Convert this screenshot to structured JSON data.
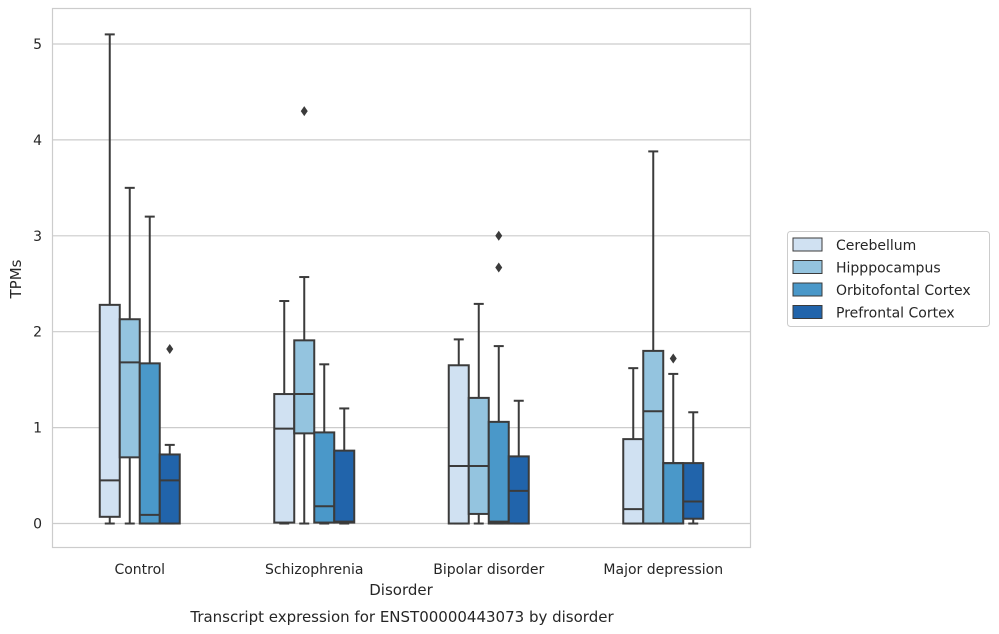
{
  "chart_data": {
    "type": "boxplot",
    "title": "",
    "caption": "Transcript expression for ENST00000443073 by disorder",
    "xlabel": "Disorder",
    "ylabel": "TPMs",
    "ylim": [
      -0.25,
      5.37
    ],
    "yticks": [
      0,
      1,
      2,
      3,
      4,
      5
    ],
    "grid": true,
    "legend_position": "right",
    "categories": [
      "Control",
      "Schizophrenia",
      "Bipolar disorder",
      "Major depression"
    ],
    "series": [
      {
        "name": "Cerebellum",
        "color": "#d0e1f2",
        "boxes": [
          {
            "whislo": 0.0,
            "q1": 0.07,
            "med": 0.45,
            "q3": 2.28,
            "whishi": 5.1,
            "fliers": []
          },
          {
            "whislo": 0.0,
            "q1": 0.01,
            "med": 0.99,
            "q3": 1.35,
            "whishi": 2.32,
            "fliers": []
          },
          {
            "whislo": 0.0,
            "q1": 0.0,
            "med": 0.6,
            "q3": 1.65,
            "whishi": 1.92,
            "fliers": []
          },
          {
            "whislo": 0.0,
            "q1": 0.0,
            "med": 0.15,
            "q3": 0.88,
            "whishi": 1.62,
            "fliers": []
          }
        ]
      },
      {
        "name": "Hipppocampus",
        "color": "#94c4df",
        "boxes": [
          {
            "whislo": 0.0,
            "q1": 0.69,
            "med": 1.68,
            "q3": 2.13,
            "whishi": 3.5,
            "fliers": []
          },
          {
            "whislo": 0.0,
            "q1": 0.94,
            "med": 1.35,
            "q3": 1.91,
            "whishi": 2.57,
            "fliers": [
              4.3
            ]
          },
          {
            "whislo": 0.0,
            "q1": 0.1,
            "med": 0.6,
            "q3": 1.31,
            "whishi": 2.29,
            "fliers": []
          },
          {
            "whislo": 0.0,
            "q1": 0.0,
            "med": 1.17,
            "q3": 1.8,
            "whishi": 3.88,
            "fliers": []
          }
        ]
      },
      {
        "name": "Orbitofontal Cortex",
        "color": "#4a98c9",
        "boxes": [
          {
            "whislo": 0.0,
            "q1": 0.0,
            "med": 0.09,
            "q3": 1.67,
            "whishi": 3.2,
            "fliers": []
          },
          {
            "whislo": 0.0,
            "q1": 0.01,
            "med": 0.18,
            "q3": 0.95,
            "whishi": 1.66,
            "fliers": []
          },
          {
            "whislo": 0.0,
            "q1": 0.0,
            "med": 0.02,
            "q3": 1.06,
            "whishi": 1.85,
            "fliers": [
              2.67,
              3.0
            ]
          },
          {
            "whislo": 0.0,
            "q1": 0.0,
            "med": 0.63,
            "q3": 0.63,
            "whishi": 1.56,
            "fliers": [
              1.72
            ]
          }
        ]
      },
      {
        "name": "Prefrontal Cortex",
        "color": "#2164ab",
        "boxes": [
          {
            "whislo": 0.0,
            "q1": 0.0,
            "med": 0.45,
            "q3": 0.72,
            "whishi": 0.82,
            "fliers": [
              1.82
            ]
          },
          {
            "whislo": 0.0,
            "q1": 0.01,
            "med": 0.02,
            "q3": 0.76,
            "whishi": 1.2,
            "fliers": []
          },
          {
            "whislo": 0.0,
            "q1": 0.0,
            "med": 0.34,
            "q3": 0.7,
            "whishi": 1.28,
            "fliers": []
          },
          {
            "whislo": 0.0,
            "q1": 0.05,
            "med": 0.23,
            "q3": 0.63,
            "whishi": 1.16,
            "fliers": []
          }
        ]
      }
    ]
  }
}
